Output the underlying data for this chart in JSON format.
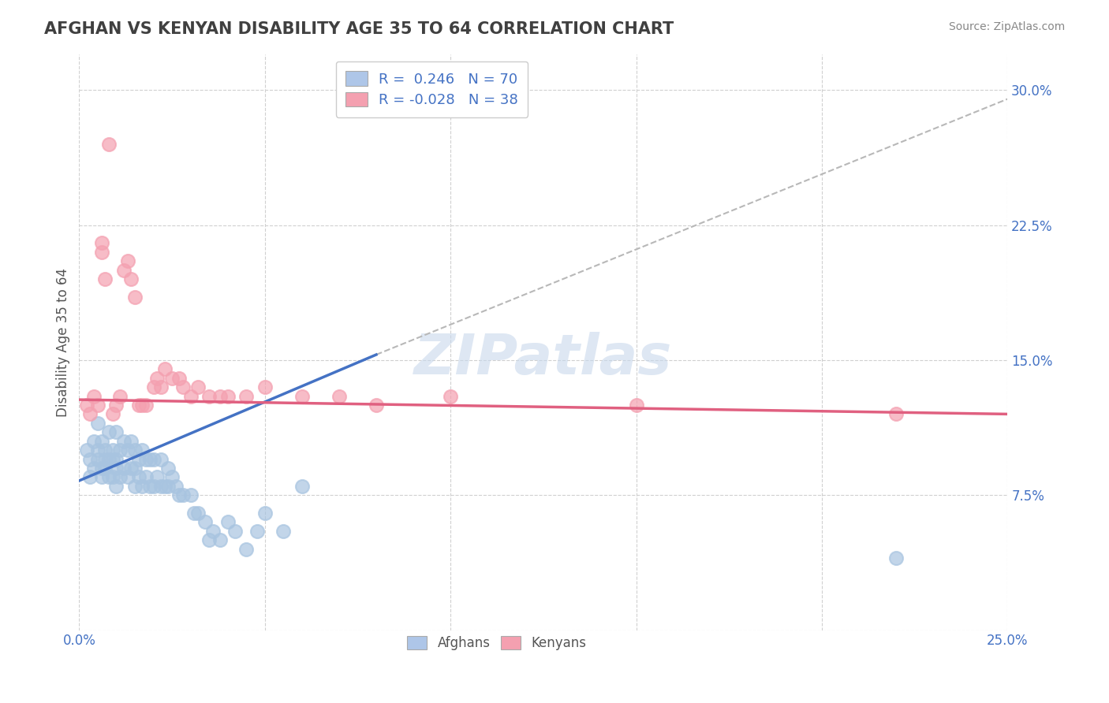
{
  "title": "AFGHAN VS KENYAN DISABILITY AGE 35 TO 64 CORRELATION CHART",
  "source_text": "Source: ZipAtlas.com",
  "xlabel": "",
  "ylabel": "Disability Age 35 to 64",
  "xlim": [
    0.0,
    0.25
  ],
  "ylim": [
    0.0,
    0.32
  ],
  "xticks": [
    0.0,
    0.05,
    0.1,
    0.15,
    0.2,
    0.25
  ],
  "yticks": [
    0.0,
    0.075,
    0.15,
    0.225,
    0.3
  ],
  "xticklabels": [
    "0.0%",
    "",
    "",
    "",
    "",
    "25.0%"
  ],
  "yticklabels": [
    "",
    "7.5%",
    "15.0%",
    "22.5%",
    "30.0%"
  ],
  "afghan_R": 0.246,
  "afghan_N": 70,
  "kenyan_R": -0.028,
  "kenyan_N": 38,
  "afghan_color": "#a8c4e0",
  "kenyan_color": "#f4a0b0",
  "afghan_line_color": "#4472c4",
  "kenyan_line_color": "#e06080",
  "trend_line_color": "#b8b8b8",
  "background_color": "#ffffff",
  "grid_color": "#d0d0d0",
  "title_color": "#404040",
  "axis_label_color": "#4472c4",
  "legend_box_color_afghan": "#aec6e8",
  "legend_box_color_kenyan": "#f4a0b0",
  "afghan_scatter_x": [
    0.002,
    0.003,
    0.003,
    0.004,
    0.004,
    0.005,
    0.005,
    0.005,
    0.006,
    0.006,
    0.006,
    0.007,
    0.007,
    0.007,
    0.008,
    0.008,
    0.008,
    0.009,
    0.009,
    0.009,
    0.01,
    0.01,
    0.01,
    0.01,
    0.011,
    0.011,
    0.012,
    0.012,
    0.013,
    0.013,
    0.014,
    0.014,
    0.015,
    0.015,
    0.015,
    0.016,
    0.016,
    0.017,
    0.017,
    0.018,
    0.018,
    0.019,
    0.019,
    0.02,
    0.02,
    0.021,
    0.022,
    0.022,
    0.023,
    0.024,
    0.024,
    0.025,
    0.026,
    0.027,
    0.028,
    0.03,
    0.031,
    0.032,
    0.034,
    0.035,
    0.036,
    0.038,
    0.04,
    0.042,
    0.045,
    0.048,
    0.05,
    0.055,
    0.06,
    0.22
  ],
  "afghan_scatter_y": [
    0.1,
    0.095,
    0.085,
    0.09,
    0.105,
    0.095,
    0.1,
    0.115,
    0.085,
    0.09,
    0.105,
    0.09,
    0.095,
    0.1,
    0.085,
    0.095,
    0.11,
    0.085,
    0.095,
    0.1,
    0.08,
    0.09,
    0.095,
    0.11,
    0.085,
    0.1,
    0.09,
    0.105,
    0.085,
    0.1,
    0.09,
    0.105,
    0.08,
    0.09,
    0.1,
    0.085,
    0.095,
    0.08,
    0.1,
    0.085,
    0.095,
    0.08,
    0.095,
    0.08,
    0.095,
    0.085,
    0.08,
    0.095,
    0.08,
    0.08,
    0.09,
    0.085,
    0.08,
    0.075,
    0.075,
    0.075,
    0.065,
    0.065,
    0.06,
    0.05,
    0.055,
    0.05,
    0.06,
    0.055,
    0.045,
    0.055,
    0.065,
    0.055,
    0.08,
    0.04
  ],
  "kenyan_scatter_x": [
    0.002,
    0.003,
    0.004,
    0.005,
    0.006,
    0.006,
    0.007,
    0.008,
    0.009,
    0.01,
    0.011,
    0.012,
    0.013,
    0.014,
    0.015,
    0.016,
    0.017,
    0.018,
    0.02,
    0.021,
    0.022,
    0.023,
    0.025,
    0.027,
    0.028,
    0.03,
    0.032,
    0.035,
    0.038,
    0.04,
    0.045,
    0.05,
    0.06,
    0.07,
    0.08,
    0.1,
    0.15,
    0.22
  ],
  "kenyan_scatter_y": [
    0.125,
    0.12,
    0.13,
    0.125,
    0.21,
    0.215,
    0.195,
    0.27,
    0.12,
    0.125,
    0.13,
    0.2,
    0.205,
    0.195,
    0.185,
    0.125,
    0.125,
    0.125,
    0.135,
    0.14,
    0.135,
    0.145,
    0.14,
    0.14,
    0.135,
    0.13,
    0.135,
    0.13,
    0.13,
    0.13,
    0.13,
    0.135,
    0.13,
    0.13,
    0.125,
    0.13,
    0.125,
    0.12
  ],
  "afghan_line_x0": 0.0,
  "afghan_line_y0": 0.083,
  "afghan_line_x1": 0.08,
  "afghan_line_y1": 0.153,
  "kenyan_line_x0": 0.0,
  "kenyan_line_y0": 0.128,
  "kenyan_line_x1": 0.25,
  "kenyan_line_y1": 0.12,
  "dash_line_x0": 0.08,
  "dash_line_y0": 0.153,
  "dash_line_x1": 0.25,
  "dash_line_y1": 0.295,
  "watermark": "ZIPatlas",
  "watermark_color": "#c8d8ec"
}
